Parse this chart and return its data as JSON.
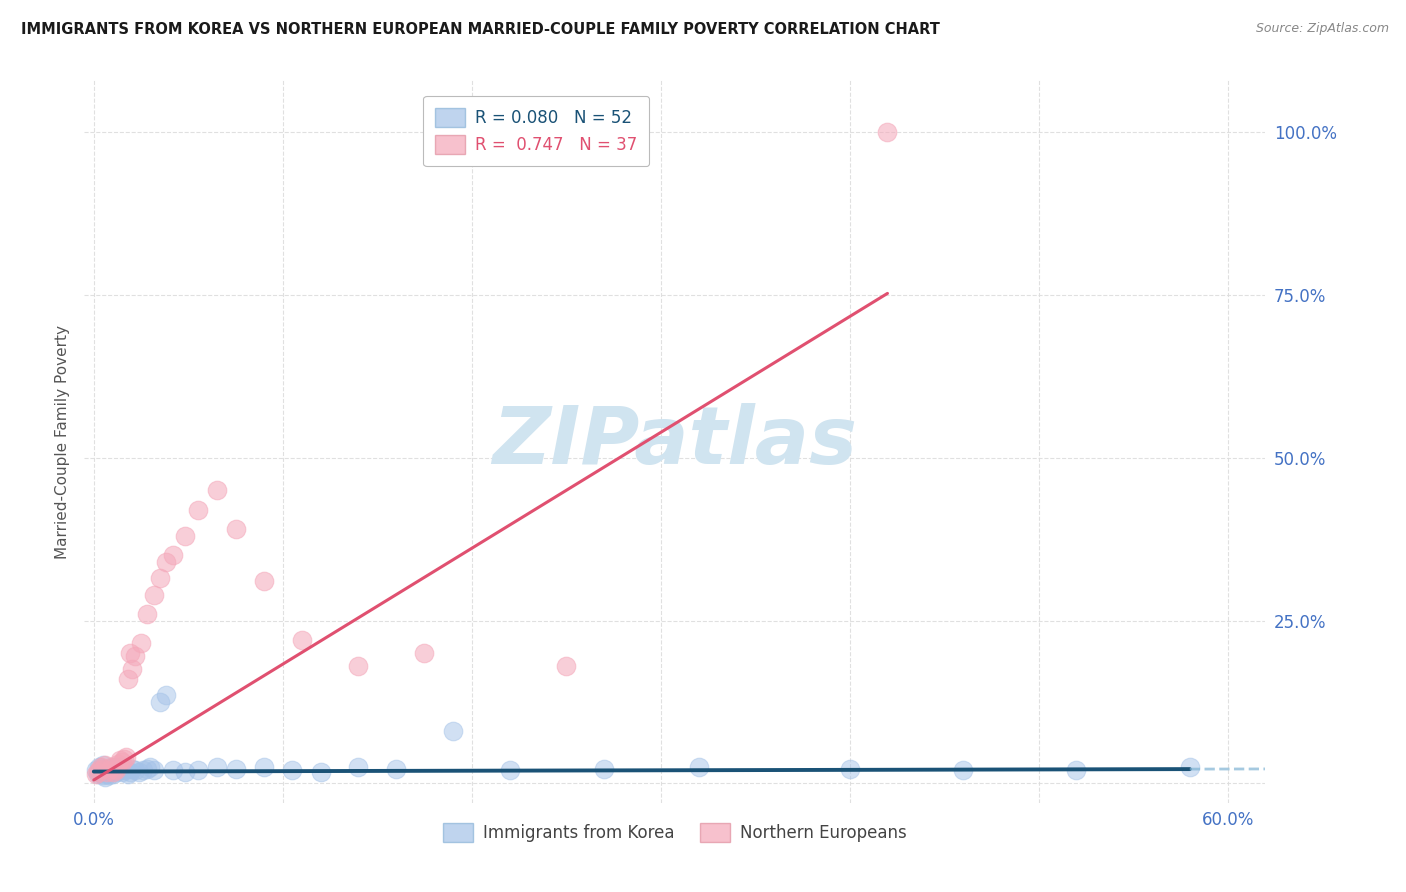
{
  "title": "IMMIGRANTS FROM KOREA VS NORTHERN EUROPEAN MARRIED-COUPLE FAMILY POVERTY CORRELATION CHART",
  "source": "Source: ZipAtlas.com",
  "ylabel": "Married-Couple Family Poverty",
  "korea_color": "#a4c2e8",
  "northern_color": "#f4a7b9",
  "korea_line_color": "#1a5276",
  "northern_line_color": "#e05070",
  "korea_line_dash_color": "#7fb3d3",
  "background_color": "#ffffff",
  "watermark_color": "#d0e4f0",
  "title_color": "#1a1a1a",
  "source_color": "#888888",
  "axis_tick_color": "#4472c4",
  "ylabel_color": "#555555",
  "grid_color": "#dddddd",
  "korea_scatter": {
    "x": [
      0.001,
      0.002,
      0.003,
      0.003,
      0.004,
      0.005,
      0.005,
      0.006,
      0.006,
      0.007,
      0.007,
      0.008,
      0.008,
      0.009,
      0.01,
      0.01,
      0.011,
      0.012,
      0.013,
      0.014,
      0.015,
      0.016,
      0.017,
      0.018,
      0.019,
      0.02,
      0.022,
      0.024,
      0.026,
      0.028,
      0.03,
      0.032,
      0.035,
      0.038,
      0.042,
      0.048,
      0.055,
      0.065,
      0.075,
      0.09,
      0.105,
      0.12,
      0.14,
      0.16,
      0.19,
      0.22,
      0.27,
      0.32,
      0.4,
      0.46,
      0.52,
      0.58
    ],
    "y": [
      0.02,
      0.015,
      0.025,
      0.018,
      0.022,
      0.012,
      0.028,
      0.01,
      0.018,
      0.015,
      0.02,
      0.012,
      0.018,
      0.02,
      0.025,
      0.015,
      0.022,
      0.018,
      0.02,
      0.025,
      0.018,
      0.02,
      0.022,
      0.015,
      0.018,
      0.022,
      0.02,
      0.018,
      0.02,
      0.022,
      0.025,
      0.02,
      0.125,
      0.135,
      0.02,
      0.018,
      0.02,
      0.025,
      0.022,
      0.025,
      0.02,
      0.018,
      0.025,
      0.022,
      0.08,
      0.02,
      0.022,
      0.025,
      0.022,
      0.02,
      0.02,
      0.025
    ]
  },
  "northern_scatter": {
    "x": [
      0.001,
      0.002,
      0.003,
      0.004,
      0.005,
      0.006,
      0.007,
      0.008,
      0.009,
      0.01,
      0.011,
      0.012,
      0.013,
      0.014,
      0.015,
      0.016,
      0.017,
      0.018,
      0.019,
      0.02,
      0.022,
      0.025,
      0.028,
      0.032,
      0.035,
      0.038,
      0.042,
      0.048,
      0.055,
      0.065,
      0.075,
      0.09,
      0.11,
      0.14,
      0.175,
      0.25,
      0.42
    ],
    "y": [
      0.015,
      0.018,
      0.02,
      0.025,
      0.022,
      0.028,
      0.018,
      0.02,
      0.025,
      0.018,
      0.022,
      0.02,
      0.03,
      0.035,
      0.032,
      0.038,
      0.04,
      0.16,
      0.2,
      0.175,
      0.195,
      0.215,
      0.26,
      0.29,
      0.315,
      0.34,
      0.35,
      0.38,
      0.42,
      0.45,
      0.39,
      0.31,
      0.22,
      0.18,
      0.2,
      0.18,
      1.0
    ]
  },
  "korea_slope": 0.0065,
  "korea_intercept": 0.018,
  "northern_slope": 1.78,
  "northern_intercept": 0.005,
  "xlim": [
    -0.005,
    0.62
  ],
  "ylim": [
    -0.03,
    1.08
  ],
  "ytick_vals": [
    0.0,
    0.25,
    0.5,
    0.75,
    1.0
  ],
  "ytick_labels": [
    "",
    "25.0%",
    "50.0%",
    "75.0%",
    "100.0%"
  ],
  "xtick_vals": [
    0.0,
    0.1,
    0.2,
    0.3,
    0.4,
    0.5,
    0.6
  ],
  "xtick_labels": [
    "0.0%",
    "",
    "",
    "",
    "",
    "",
    "60.0%"
  ]
}
